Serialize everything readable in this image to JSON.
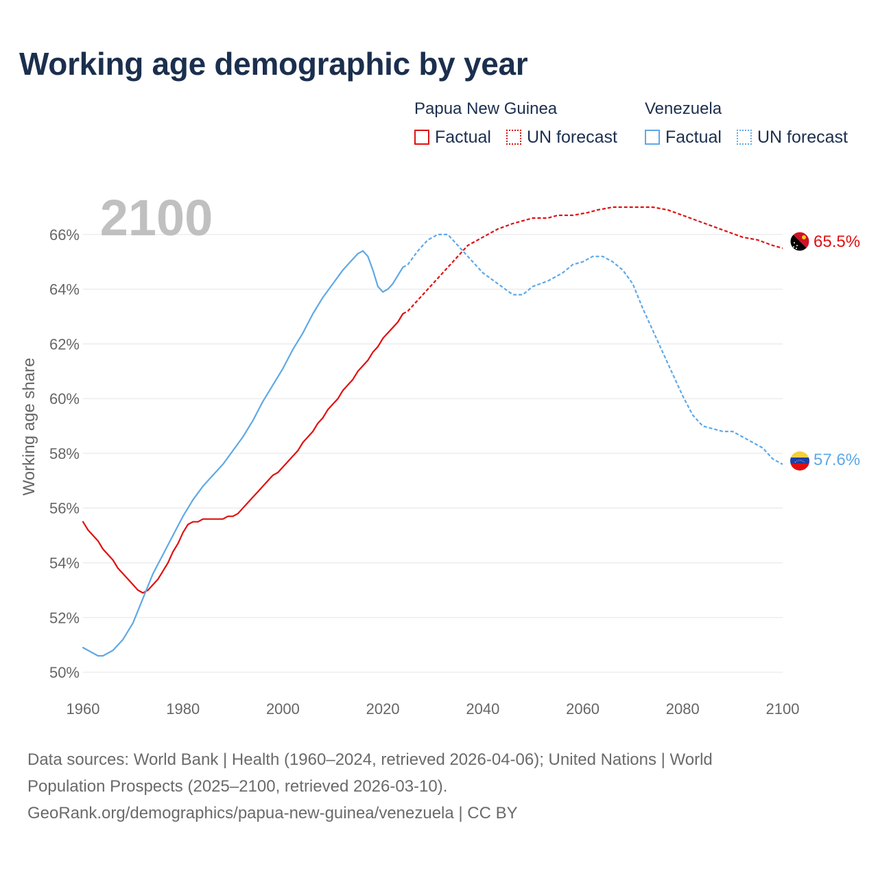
{
  "title": "Working age demographic by year",
  "legend": {
    "groups": [
      {
        "name": "Papua New Guinea",
        "factual_label": "Factual",
        "forecast_label": "UN forecast",
        "color": "#e00f0f"
      },
      {
        "name": "Venezuela",
        "factual_label": "Factual",
        "forecast_label": "UN forecast",
        "color": "#5ea8e6"
      }
    ]
  },
  "footer": {
    "line1": "Data sources: World Bank | Health (1960–2024, retrieved 2026-04-06); United Nations | World",
    "line2": "Population Prospects (2025–2100, retrieved 2026-03-10).",
    "line3": "GeoRank.org/demographics/papua-new-guinea/venezuela | CC BY"
  },
  "chart_data": {
    "type": "line",
    "title": "Working age demographic by year",
    "xlabel": "",
    "ylabel": "Working age share",
    "xlim": [
      1960,
      2100
    ],
    "ylim": [
      49.8,
      67.3
    ],
    "x_ticks": [
      1960,
      1980,
      2000,
      2020,
      2040,
      2060,
      2080,
      2100
    ],
    "x_tick_labels": [
      "1960",
      "1980",
      "2000",
      "2020",
      "2040",
      "2060",
      "2080",
      "2100"
    ],
    "y_ticks": [
      50,
      52,
      54,
      56,
      58,
      60,
      62,
      64,
      66
    ],
    "y_tick_labels": [
      "50%",
      "52%",
      "54%",
      "56%",
      "58%",
      "60%",
      "62%",
      "64%",
      "66%"
    ],
    "grid": true,
    "year_annotation": "2100",
    "forecast_start_year": 2024,
    "series": [
      {
        "name": "Papua New Guinea",
        "color": "#e00f0f",
        "flag": "papua-new-guinea-flag-icon",
        "end_label": "65.5%",
        "end_value": 65.5,
        "points": [
          [
            1960,
            55.5
          ],
          [
            1961,
            55.2
          ],
          [
            1963,
            54.8
          ],
          [
            1964,
            54.5
          ],
          [
            1966,
            54.1
          ],
          [
            1967,
            53.8
          ],
          [
            1968,
            53.6
          ],
          [
            1969,
            53.4
          ],
          [
            1970,
            53.2
          ],
          [
            1971,
            53.0
          ],
          [
            1972,
            52.9
          ],
          [
            1973,
            53.0
          ],
          [
            1974,
            53.2
          ],
          [
            1975,
            53.4
          ],
          [
            1976,
            53.7
          ],
          [
            1977,
            54.0
          ],
          [
            1978,
            54.4
          ],
          [
            1979,
            54.7
          ],
          [
            1980,
            55.1
          ],
          [
            1981,
            55.4
          ],
          [
            1982,
            55.5
          ],
          [
            1983,
            55.5
          ],
          [
            1984,
            55.6
          ],
          [
            1986,
            55.6
          ],
          [
            1988,
            55.6
          ],
          [
            1989,
            55.7
          ],
          [
            1990,
            55.7
          ],
          [
            1991,
            55.8
          ],
          [
            1992,
            56.0
          ],
          [
            1994,
            56.4
          ],
          [
            1996,
            56.8
          ],
          [
            1998,
            57.2
          ],
          [
            1999,
            57.3
          ],
          [
            2000,
            57.5
          ],
          [
            2002,
            57.9
          ],
          [
            2003,
            58.1
          ],
          [
            2004,
            58.4
          ],
          [
            2006,
            58.8
          ],
          [
            2007,
            59.1
          ],
          [
            2008,
            59.3
          ],
          [
            2009,
            59.6
          ],
          [
            2010,
            59.8
          ],
          [
            2011,
            60.0
          ],
          [
            2012,
            60.3
          ],
          [
            2014,
            60.7
          ],
          [
            2015,
            61.0
          ],
          [
            2016,
            61.2
          ],
          [
            2017,
            61.4
          ],
          [
            2018,
            61.7
          ],
          [
            2019,
            61.9
          ],
          [
            2020,
            62.2
          ],
          [
            2021,
            62.4
          ],
          [
            2022,
            62.6
          ],
          [
            2023,
            62.8
          ],
          [
            2024,
            63.1
          ],
          [
            2025,
            63.2
          ],
          [
            2027,
            63.6
          ],
          [
            2030,
            64.2
          ],
          [
            2033,
            64.8
          ],
          [
            2035,
            65.2
          ],
          [
            2037,
            65.6
          ],
          [
            2040,
            65.9
          ],
          [
            2043,
            66.2
          ],
          [
            2046,
            66.4
          ],
          [
            2050,
            66.6
          ],
          [
            2053,
            66.6
          ],
          [
            2055,
            66.7
          ],
          [
            2058,
            66.7
          ],
          [
            2061,
            66.8
          ],
          [
            2063,
            66.9
          ],
          [
            2066,
            67.0
          ],
          [
            2070,
            67.0
          ],
          [
            2074,
            67.0
          ],
          [
            2077,
            66.9
          ],
          [
            2080,
            66.7
          ],
          [
            2083,
            66.5
          ],
          [
            2086,
            66.3
          ],
          [
            2089,
            66.1
          ],
          [
            2092,
            65.9
          ],
          [
            2095,
            65.8
          ],
          [
            2098,
            65.6
          ],
          [
            2100,
            65.5
          ]
        ]
      },
      {
        "name": "Venezuela",
        "color": "#5ea8e6",
        "flag": "venezuela-flag-icon",
        "end_label": "57.6%",
        "end_value": 57.6,
        "points": [
          [
            1960,
            50.9
          ],
          [
            1962,
            50.7
          ],
          [
            1963,
            50.6
          ],
          [
            1964,
            50.6
          ],
          [
            1966,
            50.8
          ],
          [
            1968,
            51.2
          ],
          [
            1970,
            51.8
          ],
          [
            1972,
            52.7
          ],
          [
            1974,
            53.6
          ],
          [
            1976,
            54.3
          ],
          [
            1978,
            55.0
          ],
          [
            1980,
            55.7
          ],
          [
            1982,
            56.3
          ],
          [
            1984,
            56.8
          ],
          [
            1986,
            57.2
          ],
          [
            1988,
            57.6
          ],
          [
            1990,
            58.1
          ],
          [
            1992,
            58.6
          ],
          [
            1994,
            59.2
          ],
          [
            1996,
            59.9
          ],
          [
            1998,
            60.5
          ],
          [
            2000,
            61.1
          ],
          [
            2002,
            61.8
          ],
          [
            2004,
            62.4
          ],
          [
            2006,
            63.1
          ],
          [
            2008,
            63.7
          ],
          [
            2010,
            64.2
          ],
          [
            2012,
            64.7
          ],
          [
            2014,
            65.1
          ],
          [
            2015,
            65.3
          ],
          [
            2016,
            65.4
          ],
          [
            2017,
            65.2
          ],
          [
            2018,
            64.7
          ],
          [
            2019,
            64.1
          ],
          [
            2020,
            63.9
          ],
          [
            2021,
            64.0
          ],
          [
            2022,
            64.2
          ],
          [
            2024,
            64.8
          ],
          [
            2025,
            64.9
          ],
          [
            2027,
            65.4
          ],
          [
            2029,
            65.8
          ],
          [
            2031,
            66.0
          ],
          [
            2033,
            66.0
          ],
          [
            2035,
            65.6
          ],
          [
            2037,
            65.2
          ],
          [
            2040,
            64.6
          ],
          [
            2043,
            64.2
          ],
          [
            2046,
            63.8
          ],
          [
            2048,
            63.8
          ],
          [
            2050,
            64.1
          ],
          [
            2053,
            64.3
          ],
          [
            2056,
            64.6
          ],
          [
            2058,
            64.9
          ],
          [
            2060,
            65.0
          ],
          [
            2062,
            65.2
          ],
          [
            2064,
            65.2
          ],
          [
            2066,
            65.0
          ],
          [
            2068,
            64.7
          ],
          [
            2070,
            64.2
          ],
          [
            2072,
            63.3
          ],
          [
            2074,
            62.5
          ],
          [
            2076,
            61.7
          ],
          [
            2078,
            60.9
          ],
          [
            2080,
            60.1
          ],
          [
            2082,
            59.4
          ],
          [
            2084,
            59.0
          ],
          [
            2086,
            58.9
          ],
          [
            2088,
            58.8
          ],
          [
            2090,
            58.8
          ],
          [
            2092,
            58.6
          ],
          [
            2094,
            58.4
          ],
          [
            2096,
            58.2
          ],
          [
            2098,
            57.8
          ],
          [
            2100,
            57.6
          ]
        ]
      }
    ]
  }
}
